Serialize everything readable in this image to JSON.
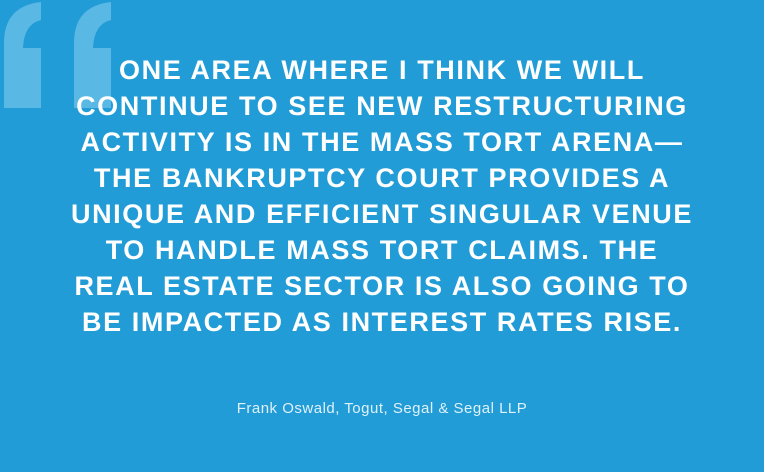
{
  "colors": {
    "background": "#229cd6",
    "quote_mark": "#5ab8e4",
    "text": "#ffffff"
  },
  "quote_icon": "open-double-quote",
  "quote_lines": [
    "ONE AREA WHERE I THINK WE WILL",
    "CONTINUE TO SEE NEW RESTRUCTURING",
    "ACTIVITY IS IN THE MASS TORT ARENA—",
    "THE BANKRUPTCY COURT PROVIDES A",
    "UNIQUE AND EFFICIENT SINGULAR VENUE",
    "TO HANDLE MASS TORT CLAIMS. THE",
    "REAL ESTATE SECTOR IS ALSO GOING TO",
    "BE IMPACTED AS INTEREST RATES RISE."
  ],
  "attribution": "Frank Oswald, Togut, Segal & Segal LLP"
}
